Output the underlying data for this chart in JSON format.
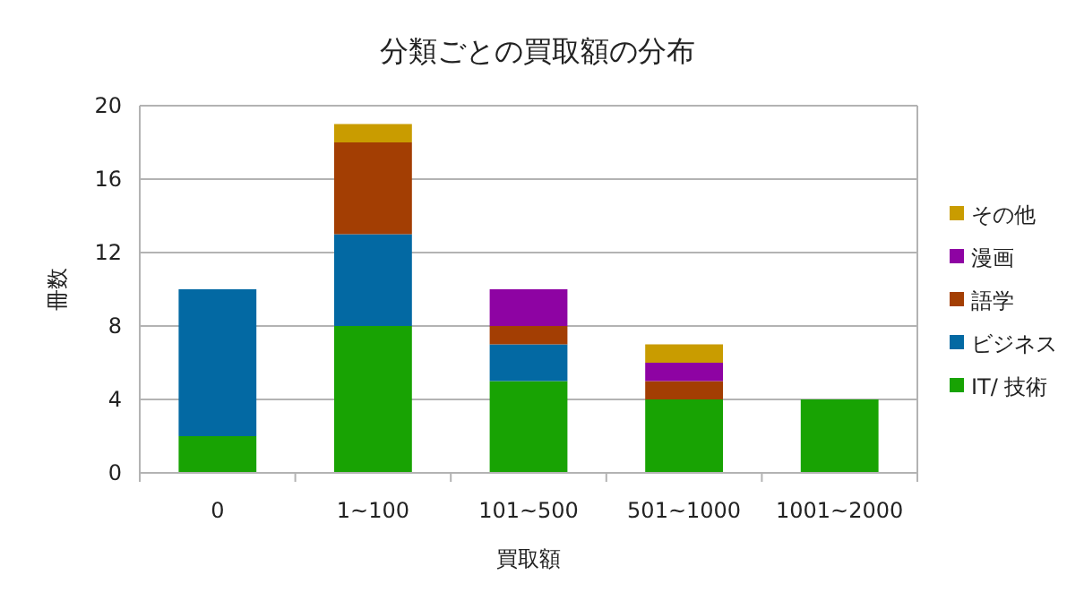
{
  "chart_data": {
    "type": "bar",
    "title": "分類ごとの買取額の分布",
    "xlabel": "買取額",
    "ylabel": "冊数",
    "categories": [
      "0",
      "1~100",
      "101~500",
      "501~1000",
      "1001~2000"
    ],
    "stacked": true,
    "ylim": [
      0,
      20
    ],
    "yticks": [
      0,
      4,
      8,
      12,
      16,
      20
    ],
    "grid": "y",
    "legend": "right",
    "series": [
      {
        "name": "IT/ 技術",
        "color": "#18a303",
        "values": [
          2,
          8,
          5,
          4,
          4
        ]
      },
      {
        "name": "ビジネス",
        "color": "#0369a3",
        "values": [
          8,
          5,
          2,
          0,
          0
        ]
      },
      {
        "name": "語学",
        "color": "#a33e03",
        "values": [
          0,
          5,
          1,
          1,
          0
        ]
      },
      {
        "name": "漫画",
        "color": "#8e03a3",
        "values": [
          0,
          0,
          2,
          1,
          0
        ]
      },
      {
        "name": "その他",
        "color": "#c99c00",
        "values": [
          0,
          1,
          0,
          1,
          0
        ]
      }
    ]
  }
}
